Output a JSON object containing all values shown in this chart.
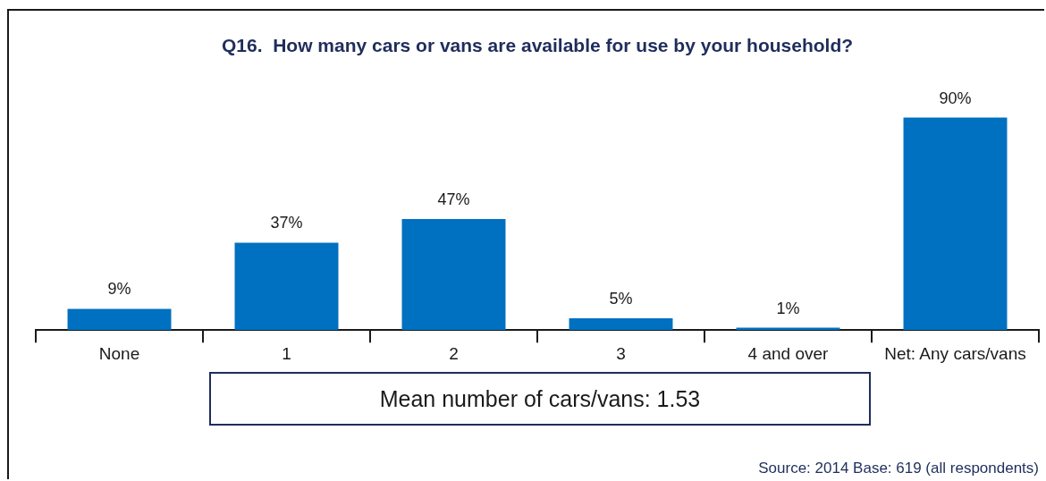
{
  "chart_data": {
    "type": "bar",
    "title": "Q16.  How many cars or vans are available for use by your household?",
    "categories": [
      "None",
      "1",
      "2",
      "3",
      "4 and over",
      "Net: Any cars/vans"
    ],
    "values": [
      9,
      37,
      47,
      5,
      1,
      90
    ],
    "color": "#0070c0",
    "data_labels": true,
    "value_labels": [
      "9%",
      "37%",
      "47%",
      "5%",
      "1%",
      "90%"
    ],
    "annotations": [
      "Mean number of cars/vans: 1.53",
      "Source: 2014  Base: 619 (all respondents)"
    ]
  }
}
